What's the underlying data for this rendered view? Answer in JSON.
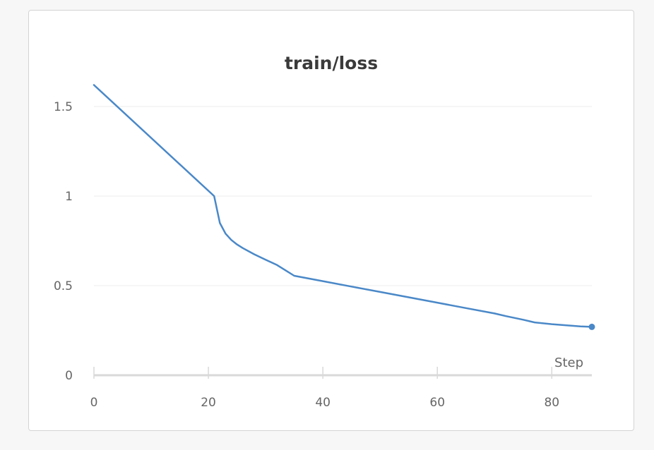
{
  "chart_data": {
    "type": "line",
    "title": "train/loss",
    "xlabel": "Step",
    "ylabel": "",
    "xlim": [
      0,
      87
    ],
    "ylim": [
      0,
      1.6
    ],
    "xticks": [
      0,
      20,
      40,
      60,
      80
    ],
    "yticks": [
      0,
      0.5,
      1,
      1.5
    ],
    "ytick_labels": [
      "0",
      "0.5",
      "1",
      "1.5"
    ],
    "grid": true,
    "legend": "none",
    "colors": {
      "line": "#4a88c8",
      "grid": "#ececec",
      "axis": "#d9d9d9"
    },
    "series": [
      {
        "x": [
          0,
          21,
          22,
          23,
          24,
          25,
          26,
          28,
          30,
          32,
          35,
          40,
          45,
          50,
          55,
          60,
          65,
          70,
          72,
          75,
          77,
          80,
          85,
          87
        ],
        "y": [
          1.62,
          1.0,
          0.85,
          0.79,
          0.755,
          0.73,
          0.71,
          0.675,
          0.645,
          0.615,
          0.555,
          0.525,
          0.495,
          0.465,
          0.435,
          0.405,
          0.375,
          0.345,
          0.33,
          0.31,
          0.295,
          0.285,
          0.273,
          0.27
        ]
      }
    ]
  }
}
